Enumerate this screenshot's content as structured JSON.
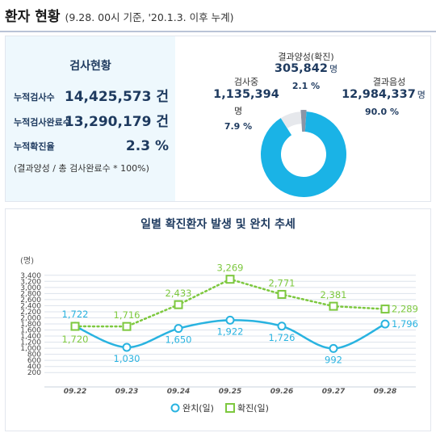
{
  "header": {
    "title": "환자 현황",
    "subtitle": "(9.28. 00시 기준, '20.1.3. 이후 누계)"
  },
  "stats": {
    "title": "검사현황",
    "rows": [
      {
        "label": "누적검사수",
        "value": "14,425,573 건"
      },
      {
        "label": "누적검사완료수",
        "value": "13,290,179 건"
      },
      {
        "label": "누적확진율",
        "value": "2.3 %"
      }
    ],
    "formula": "(결과양성 / 총 검사완료수 * 100%)"
  },
  "pie": {
    "colors": {
      "negative": "#1ab3e6",
      "testing": "#e6e8ec",
      "positive": "#8a95a6"
    },
    "segments": [
      {
        "key": "positive",
        "label": "결과양성(확진)",
        "count": "305,842",
        "unit": "명",
        "percent": "2.1 %",
        "fraction": 0.021
      },
      {
        "key": "testing",
        "label": "검사중",
        "count": "1,135,394",
        "unit": "명",
        "percent": "7.9 %",
        "fraction": 0.079
      },
      {
        "key": "negative",
        "label": "결과음성",
        "count": "12,984,337",
        "unit": "명",
        "percent": "90.0 %",
        "fraction": 0.9
      }
    ]
  },
  "chart_title": "일별 확진환자 발생 및 완치 추세",
  "chart_data": {
    "type": "line",
    "title": "일별 확진환자 발생 및 완치 추세",
    "unit_label": "(명)",
    "categories": [
      "09.22",
      "09.23",
      "09.24",
      "09.25",
      "09.26",
      "09.27",
      "09.28"
    ],
    "y_ticks": [
      200,
      400,
      600,
      800,
      1000,
      1200,
      1400,
      1600,
      1800,
      2000,
      2200,
      2400,
      2600,
      2800,
      3000,
      3200,
      3400
    ],
    "y_tick_labels": [
      "200",
      "400",
      "600",
      "800",
      "1,000",
      "1,200",
      "1,400",
      "1,600",
      "1,800",
      "2,000",
      "2,200",
      "2,400",
      "2,600",
      "2,800",
      "3,000",
      "3,200",
      "3,400"
    ],
    "ylim": [
      100,
      3500
    ],
    "grid": true,
    "legend_position": "bottom",
    "series": [
      {
        "name": "완치(일)",
        "color": "#29b3e0",
        "marker": "circle",
        "style": "solid",
        "smooth": true,
        "values": [
          1722,
          1030,
          1650,
          1922,
          1726,
          992,
          1796
        ]
      },
      {
        "name": "확진(일)",
        "color": "#7dc83f",
        "marker": "square",
        "style": "dotted",
        "smooth": false,
        "values": [
          1720,
          1716,
          2433,
          3269,
          2771,
          2381,
          2289
        ]
      }
    ]
  }
}
